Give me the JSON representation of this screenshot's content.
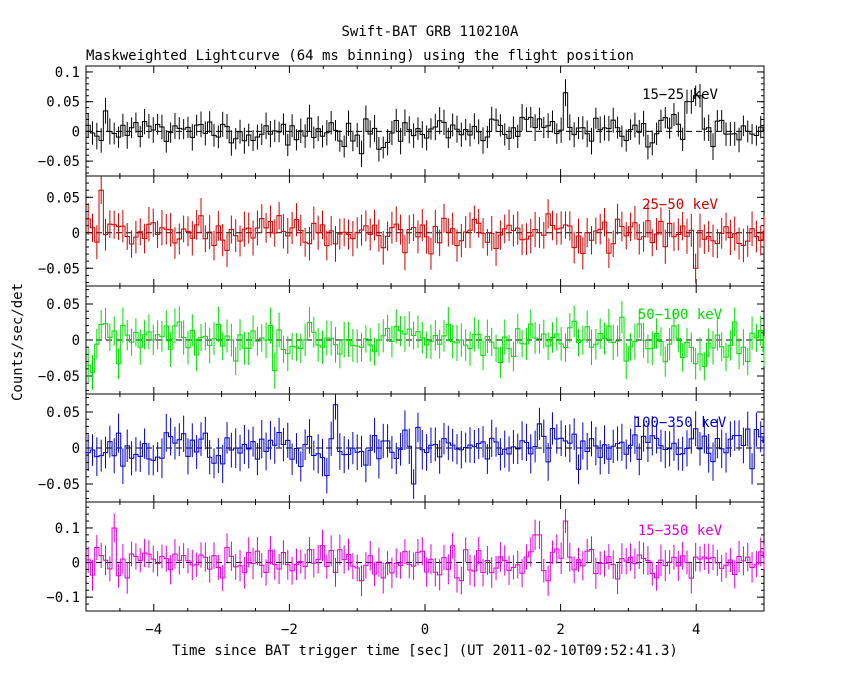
{
  "title": "Swift-BAT GRB 110210A",
  "subtitle": "Maskweighted Lightcurve (64 ms binning) using the flight position",
  "colors": {
    "axis": "#000000"
  },
  "chart_data": {
    "type": "line",
    "style": "step histogram with error bars, five stacked panels sharing x axis",
    "xlabel": "Time since BAT trigger time [sec] (UT 2011-02-10T09:52:41.3)",
    "ylabel": "Counts/sec/det",
    "xlim": [
      -5,
      5
    ],
    "xticks": [
      -4,
      -2,
      0,
      2,
      4
    ],
    "x_tick_labels": [
      "−4",
      "−2",
      "0",
      "2",
      "4"
    ],
    "bin_width": 0.064,
    "grid": false,
    "zero_line": "dashed",
    "series": [
      {
        "name": "15−25 keV",
        "color": "#000000",
        "ylim": [
          -0.075,
          0.11
        ],
        "yticks": [
          -0.05,
          0,
          0.05,
          0.1
        ],
        "y_tick_labels": [
          "−0.05",
          "0",
          "0.05",
          "0.1"
        ],
        "noise_sigma": 0.018,
        "error": 0.02,
        "features": [
          {
            "x": 2.05,
            "value": 0.065
          },
          {
            "x": 3.9,
            "value": 0.05
          },
          {
            "x": 3.97,
            "value": 0.085
          },
          {
            "x": 4.03,
            "value": 0.06
          }
        ]
      },
      {
        "name": "25−50 keV",
        "color": "#cc0000",
        "ylim": [
          -0.075,
          0.08
        ],
        "yticks": [
          -0.05,
          0,
          0.05
        ],
        "y_tick_labels": [
          "−0.05",
          "0",
          "0.05"
        ],
        "noise_sigma": 0.019,
        "error": 0.022,
        "features": [
          {
            "x": -4.8,
            "value": 0.06
          },
          {
            "x": 3.97,
            "value": -0.05
          }
        ]
      },
      {
        "name": "50−100 keV",
        "color": "#00dd00",
        "ylim": [
          -0.075,
          0.075
        ],
        "yticks": [
          -0.05,
          0,
          0.05
        ],
        "y_tick_labels": [
          "−0.05",
          "0",
          "0.05"
        ],
        "noise_sigma": 0.02,
        "error": 0.022,
        "features": [
          {
            "x": -4.95,
            "value": -0.035
          },
          {
            "x": -4.88,
            "value": -0.045
          }
        ]
      },
      {
        "name": "100−350 keV",
        "color": "#0000cc",
        "ylim": [
          -0.075,
          0.075
        ],
        "yticks": [
          -0.05,
          0,
          0.05
        ],
        "y_tick_labels": [
          "−0.05",
          "0",
          "0.05"
        ],
        "noise_sigma": 0.021,
        "error": 0.024,
        "features": [
          {
            "x": -1.3,
            "value": 0.06
          },
          {
            "x": -0.15,
            "value": -0.05
          }
        ]
      },
      {
        "name": "15−350 keV",
        "color": "#dd00dd",
        "ylim": [
          -0.14,
          0.175
        ],
        "yticks": [
          -0.1,
          0,
          0.1
        ],
        "y_tick_labels": [
          "−0.1",
          "0",
          "0.1"
        ],
        "noise_sigma": 0.035,
        "error": 0.04,
        "features": [
          {
            "x": 2.05,
            "value": 0.12
          },
          {
            "x": 1.65,
            "value": 0.08
          },
          {
            "x": -4.6,
            "value": 0.1
          }
        ]
      }
    ]
  }
}
